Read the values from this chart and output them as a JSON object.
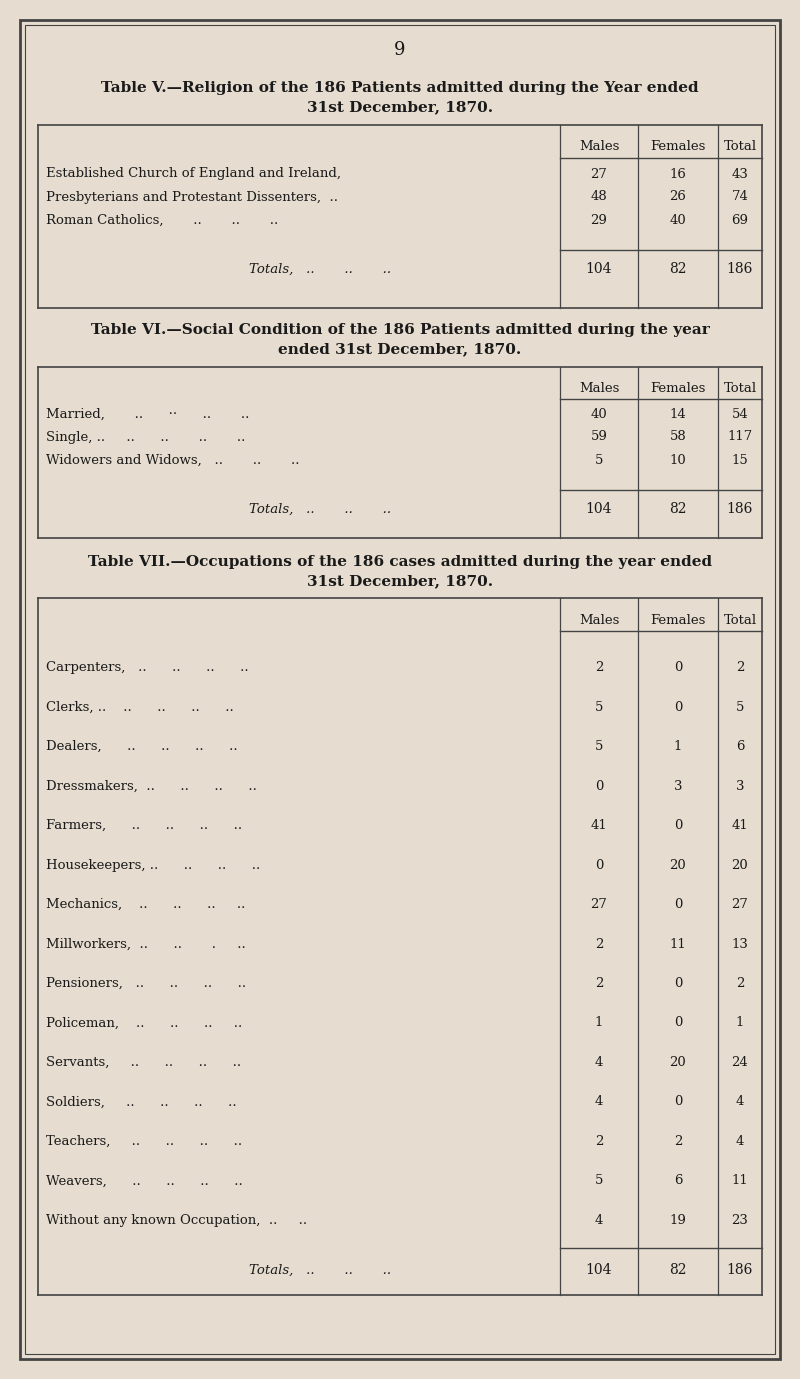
{
  "bg_color": "#e6ddd0",
  "table_line_color": "#444444",
  "text_color": "#1a1a1a",
  "page_number": "9",
  "table5_title_line1": "Table V.—Religion of the 186 Patients admitted during the Year ended",
  "table5_title_line2": "31st December, 1870.",
  "table5_rows": [
    [
      "Established Church of England and Ireland,",
      "27",
      "16",
      "43"
    ],
    [
      "Presbyterians and Protestant Dissenters,  ..",
      "48",
      "26",
      "74"
    ],
    [
      "Roman Catholics,       ..       ..       ..",
      "29",
      "40",
      "69"
    ]
  ],
  "table5_totals": [
    "104",
    "82",
    "186"
  ],
  "table6_title_line1": "Table VI.—Social Condition of the 186 Patients admitted during the year",
  "table6_title_line2": "ended 31st December, 1870.",
  "table6_rows": [
    [
      "Married,       ..      ··      ..       ..",
      "40",
      "14",
      "54"
    ],
    [
      "Single, ..     ..      ..       ..       ..",
      "59",
      "58",
      "117"
    ],
    [
      "Widowers and Widows,   ..       ..       ..",
      "5",
      "10",
      "15"
    ]
  ],
  "table6_totals": [
    "104",
    "82",
    "186"
  ],
  "table7_title_line1": "Table VII.—Occupations of the 186 cases admitted during the year ended",
  "table7_title_line2": "31st December, 1870.",
  "table7_rows": [
    [
      "Carpenters,   ..      ..      ..      ..",
      "2",
      "0",
      "2"
    ],
    [
      "Clerks, ..    ..      ..      ..      ..",
      "5",
      "0",
      "5"
    ],
    [
      "Dealers,      ..      ..      ..      ..",
      "5",
      "1",
      "6"
    ],
    [
      "Dressmakers,  ..      ..      ..      ..",
      "0",
      "3",
      "3"
    ],
    [
      "Farmers,      ..      ..      ..      ..",
      "41",
      "0",
      "41"
    ],
    [
      "Housekeepers, ..      ..      ..      ..",
      "0",
      "20",
      "20"
    ],
    [
      "Mechanics,    ..      ..      ..     ..",
      "27",
      "0",
      "27"
    ],
    [
      "Millworkers,  ..      ..       .     ..",
      "2",
      "11",
      "13"
    ],
    [
      "Pensioners,   ..      ..      ..      ..",
      "2",
      "0",
      "2"
    ],
    [
      "Policeman,    ..      ..      ..     ..",
      "1",
      "0",
      "1"
    ],
    [
      "Servants,     ..      ..      ..      ..",
      "4",
      "20",
      "24"
    ],
    [
      "Soldiers,     ..      ..      ..      ..",
      "4",
      "0",
      "4"
    ],
    [
      "Teachers,     ..      ..      ..      ..",
      "2",
      "2",
      "4"
    ],
    [
      "Weavers,      ..      ..      ..      ..",
      "5",
      "6",
      "11"
    ],
    [
      "Without any known Occupation,  ..     ..",
      "4",
      "19",
      "23"
    ]
  ],
  "table7_totals": [
    "104",
    "82",
    "186"
  ]
}
